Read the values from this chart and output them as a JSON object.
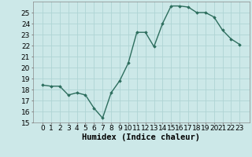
{
  "x": [
    0,
    1,
    2,
    3,
    4,
    5,
    6,
    7,
    8,
    9,
    10,
    11,
    12,
    13,
    14,
    15,
    16,
    17,
    18,
    19,
    20,
    21,
    22,
    23
  ],
  "y": [
    18.4,
    18.3,
    18.3,
    17.5,
    17.7,
    17.5,
    16.3,
    15.4,
    17.7,
    18.8,
    20.4,
    23.2,
    23.2,
    21.9,
    24.0,
    25.6,
    25.6,
    25.5,
    25.0,
    25.0,
    24.6,
    23.4,
    22.6,
    22.1
  ],
  "line_color": "#2d6e5e",
  "marker": "D",
  "marker_size": 1.8,
  "bg_color": "#cce8e8",
  "grid_color": "#afd4d4",
  "xlabel": "Humidex (Indice chaleur)",
  "ylim": [
    15,
    26
  ],
  "yticks": [
    15,
    16,
    17,
    18,
    19,
    20,
    21,
    22,
    23,
    24,
    25
  ],
  "xticks": [
    0,
    1,
    2,
    3,
    4,
    5,
    6,
    7,
    8,
    9,
    10,
    11,
    12,
    13,
    14,
    15,
    16,
    17,
    18,
    19,
    20,
    21,
    22,
    23
  ],
  "xlabel_fontsize": 7.5,
  "tick_fontsize": 6.5,
  "line_width": 1.0
}
